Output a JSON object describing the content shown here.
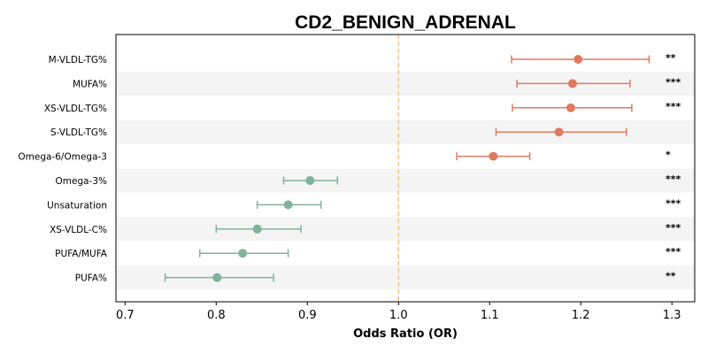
{
  "chart_data": {
    "type": "forest",
    "title": "CD2_BENIGN_ADRENAL",
    "xlabel": "Odds Ratio (OR)",
    "xlim": [
      0.69,
      1.325
    ],
    "xticks": [
      0.7,
      0.8,
      0.9,
      1.0,
      1.1,
      1.2,
      1.3
    ],
    "xtick_labels": [
      "0.7",
      "0.8",
      "0.9",
      "1.0",
      "1.1",
      "1.2",
      "1.3"
    ],
    "reference_line": 1.0,
    "colors": {
      "increase": "#e07a5f",
      "decrease": "#81b29a",
      "reference": "#f4c27a",
      "band": "#f4f4f4",
      "frame": "#000000"
    },
    "rows": [
      {
        "label": "M-VLDL-TG%",
        "or": 1.197,
        "ci_low": 1.124,
        "ci_high": 1.275,
        "sig": "**"
      },
      {
        "label": "MUFA%",
        "or": 1.191,
        "ci_low": 1.13,
        "ci_high": 1.254,
        "sig": "***"
      },
      {
        "label": "XS-VLDL-TG%",
        "or": 1.189,
        "ci_low": 1.125,
        "ci_high": 1.256,
        "sig": "***"
      },
      {
        "label": "S-VLDL-TG%",
        "or": 1.176,
        "ci_low": 1.107,
        "ci_high": 1.25,
        "sig": ""
      },
      {
        "label": "Omega-6/Omega-3",
        "or": 1.104,
        "ci_low": 1.064,
        "ci_high": 1.144,
        "sig": "*"
      },
      {
        "label": "Omega-3%",
        "or": 0.903,
        "ci_low": 0.874,
        "ci_high": 0.933,
        "sig": "***"
      },
      {
        "label": "Unsaturation",
        "or": 0.879,
        "ci_low": 0.845,
        "ci_high": 0.915,
        "sig": "***"
      },
      {
        "label": "XS-VLDL-C%",
        "or": 0.845,
        "ci_low": 0.8,
        "ci_high": 0.893,
        "sig": "***"
      },
      {
        "label": "PUFA/MUFA",
        "or": 0.829,
        "ci_low": 0.782,
        "ci_high": 0.879,
        "sig": "***"
      },
      {
        "label": "PUFA%",
        "or": 0.801,
        "ci_low": 0.744,
        "ci_high": 0.863,
        "sig": "**"
      }
    ]
  }
}
